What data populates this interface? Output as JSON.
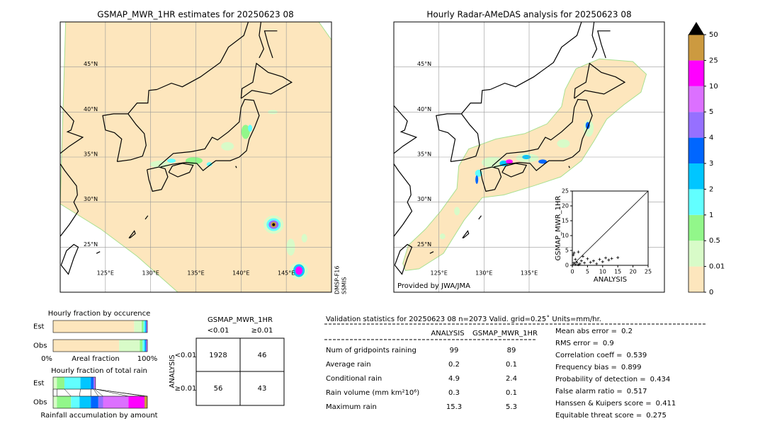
{
  "left_map": {
    "title": "GSMAP_MWR_1HR estimates for 20250623 08",
    "xlim": [
      120,
      150
    ],
    "ylim": [
      20,
      50
    ],
    "lat_ticks": [
      {
        "value": 45,
        "label": "45°N"
      },
      {
        "value": 40,
        "label": "40°N"
      },
      {
        "value": 35,
        "label": "35°N"
      },
      {
        "value": 30,
        "label": "30°N"
      },
      {
        "value": 25,
        "label": "25°N"
      }
    ],
    "lon_ticks": [
      {
        "value": 125,
        "label": "125°E"
      },
      {
        "value": 130,
        "label": "130°E"
      },
      {
        "value": 135,
        "label": "135°E"
      },
      {
        "value": 140,
        "label": "140°E"
      },
      {
        "value": 145,
        "label": "145°E"
      }
    ],
    "satellite": [
      "DMSP-F16",
      "SSMIS"
    ]
  },
  "right_map": {
    "title": "Hourly Radar-AMeDAS analysis for 20250623 08",
    "xlim": [
      120,
      150
    ],
    "ylim": [
      20,
      50
    ],
    "lat_ticks": [
      {
        "value": 45,
        "label": "45°N"
      },
      {
        "value": 40,
        "label": "40°N"
      },
      {
        "value": 35,
        "label": "35°N"
      },
      {
        "value": 30,
        "label": "30°N"
      },
      {
        "value": 25,
        "label": "25°N"
      }
    ],
    "lon_ticks": [
      {
        "value": 125,
        "label": "125°E"
      },
      {
        "value": 130,
        "label": "130°E"
      },
      {
        "value": 135,
        "label": "135°E"
      }
    ],
    "credit": "Provided by JWA/JMA",
    "inset": {
      "type": "scatter",
      "x_label": "ANALYSIS",
      "y_label": "GSMAP_MWR_1HR",
      "x": [
        0.3,
        0.6,
        1,
        1.5,
        2,
        2.5,
        3,
        4,
        5,
        6,
        7,
        8,
        9,
        10,
        11,
        12,
        13,
        15,
        1,
        0.5,
        2,
        3.5
      ],
      "values": [
        3.5,
        4.2,
        2,
        1,
        4.5,
        0.5,
        1.5,
        0.8,
        2.2,
        1,
        1.5,
        0.5,
        2,
        1.2,
        2.5,
        1.8,
        2.3,
        2.6,
        0.3,
        0.8,
        0.2,
        3
      ],
      "xlim": [
        0,
        25
      ],
      "ylim": [
        0,
        25
      ],
      "xticks": [
        0,
        5,
        10,
        15,
        20,
        25
      ],
      "yticks": [
        0,
        5,
        10,
        15,
        20,
        25
      ]
    }
  },
  "colorbar": {
    "ticks": [
      0,
      0.01,
      0.5,
      1,
      2,
      3,
      4,
      5,
      10,
      25,
      50
    ],
    "colors": [
      "#fde6bd",
      "#d8fbc8",
      "#92f78a",
      "#62ffff",
      "#00c6ff",
      "#0066ff",
      "#9670ff",
      "#dc70ff",
      "#ff00ff",
      "#cc9a40"
    ],
    "extend_color": "#000000"
  },
  "occurrence": {
    "title": "Hourly fraction by occurence",
    "rows": [
      "Est",
      "Obs"
    ],
    "values": [
      [
        0.86,
        0.08,
        0.02,
        0.015,
        0.01,
        0.005,
        0.003,
        0.003,
        0.003,
        0.001
      ],
      [
        0.7,
        0.22,
        0.03,
        0.02,
        0.01,
        0.008,
        0.004,
        0.004,
        0.003,
        0.001
      ]
    ],
    "x_labels": [
      "0%",
      "Areal fraction",
      "100%"
    ]
  },
  "total_rain": {
    "title": "Hourly fraction of total rain",
    "rows": [
      "Est",
      "Obs"
    ],
    "values": [
      [
        0,
        0.04,
        0.08,
        0.17,
        0.11,
        0.03,
        0.01,
        0.01,
        0,
        0
      ],
      [
        0,
        0.04,
        0.15,
        0.09,
        0.12,
        0.08,
        0.05,
        0.27,
        0.17,
        0.03
      ]
    ],
    "x_label": "Rainfall accumulation by amount"
  },
  "contingency": {
    "title": "GSMAP_MWR_1HR",
    "columns": [
      "<0.01",
      "≥0.01"
    ],
    "row_title": "ANALYSIS",
    "rows": [
      "<0.01",
      "≥0.01"
    ],
    "values": [
      [
        1928,
        46
      ],
      [
        56,
        43
      ]
    ]
  },
  "validation": {
    "header": "Validation statistics for 20250623 08  n=2073 Valid. grid=0.25˚ Units=mm/hr.",
    "columns": [
      "ANALYSIS",
      "GSMAP_MWR_1HR"
    ],
    "rows": [
      {
        "label": "Num of gridpoints raining",
        "values": [
          99,
          89
        ]
      },
      {
        "label": "Average rain",
        "values": [
          0.2,
          0.1
        ]
      },
      {
        "label": "Conditional rain",
        "values": [
          4.9,
          2.4
        ]
      },
      {
        "label": "Rain volume (mm km²10⁶)",
        "values": [
          0.3,
          0.1
        ]
      },
      {
        "label": "Maximum rain",
        "values": [
          15.3,
          5.3
        ]
      }
    ]
  },
  "scores": [
    {
      "label": "Mean abs error =",
      "value": 0.2
    },
    {
      "label": "RMS error =",
      "value": 0.9
    },
    {
      "label": "Correlation coeff =",
      "value": 0.539
    },
    {
      "label": "Frequency bias =",
      "value": 0.899
    },
    {
      "label": "Probability of detection =",
      "value": 0.434
    },
    {
      "label": "False alarm ratio =",
      "value": 0.517
    },
    {
      "label": "Hanssen & Kuipers score =",
      "value": 0.411
    },
    {
      "label": "Equitable threat score =",
      "value": 0.275
    }
  ]
}
